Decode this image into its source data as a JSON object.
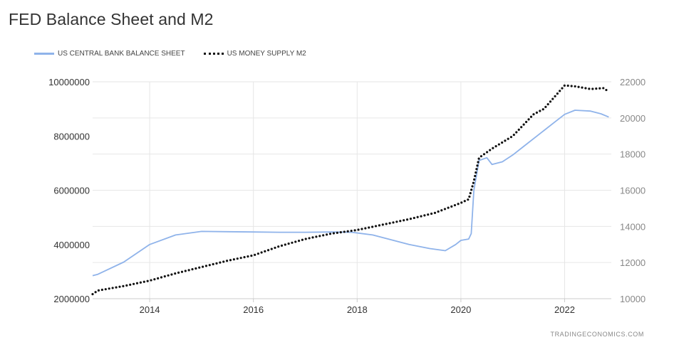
{
  "title": "FED Balance Sheet and M2",
  "source": "TRADINGECONOMICS.COM",
  "chart_data": {
    "type": "line",
    "title": "FED Balance Sheet and M2",
    "legend_position": "top-left",
    "grid": true,
    "x_ticks": [
      "2014",
      "2016",
      "2018",
      "2020",
      "2022"
    ],
    "x_range": [
      2012.9,
      2022.9
    ],
    "y_left": {
      "range": [
        2000000,
        10000000
      ],
      "ticks": [
        "2000000",
        "4000000",
        "6000000",
        "8000000",
        "10000000"
      ]
    },
    "y_right": {
      "range": [
        10000,
        22000
      ],
      "ticks": [
        "10000",
        "12000",
        "14000",
        "16000",
        "18000",
        "20000",
        "22000"
      ]
    },
    "series": [
      {
        "name": "US CENTRAL BANK BALANCE SHEET",
        "axis": "left",
        "color": "#8fb3ea",
        "style": "solid",
        "points": [
          [
            2012.9,
            2850000
          ],
          [
            2013.0,
            2900000
          ],
          [
            2013.5,
            3350000
          ],
          [
            2014.0,
            4000000
          ],
          [
            2014.5,
            4350000
          ],
          [
            2015.0,
            4480000
          ],
          [
            2015.5,
            4470000
          ],
          [
            2016.0,
            4460000
          ],
          [
            2016.5,
            4450000
          ],
          [
            2017.0,
            4450000
          ],
          [
            2017.5,
            4460000
          ],
          [
            2017.9,
            4450000
          ],
          [
            2018.3,
            4350000
          ],
          [
            2018.7,
            4150000
          ],
          [
            2019.0,
            4000000
          ],
          [
            2019.4,
            3850000
          ],
          [
            2019.7,
            3770000
          ],
          [
            2019.9,
            4000000
          ],
          [
            2020.0,
            4150000
          ],
          [
            2020.15,
            4200000
          ],
          [
            2020.2,
            4400000
          ],
          [
            2020.25,
            6000000
          ],
          [
            2020.35,
            7100000
          ],
          [
            2020.5,
            7200000
          ],
          [
            2020.6,
            6950000
          ],
          [
            2020.8,
            7050000
          ],
          [
            2021.0,
            7300000
          ],
          [
            2021.2,
            7600000
          ],
          [
            2021.5,
            8050000
          ],
          [
            2021.8,
            8500000
          ],
          [
            2022.0,
            8800000
          ],
          [
            2022.2,
            8950000
          ],
          [
            2022.5,
            8920000
          ],
          [
            2022.7,
            8820000
          ],
          [
            2022.85,
            8700000
          ]
        ]
      },
      {
        "name": "US MONEY SUPPLY M2",
        "axis": "right",
        "color": "#111111",
        "style": "dotted",
        "points": [
          [
            2012.9,
            10250
          ],
          [
            2013.0,
            10450
          ],
          [
            2013.5,
            10700
          ],
          [
            2014.0,
            11000
          ],
          [
            2014.5,
            11400
          ],
          [
            2015.0,
            11750
          ],
          [
            2015.5,
            12100
          ],
          [
            2016.0,
            12400
          ],
          [
            2016.5,
            12900
          ],
          [
            2017.0,
            13300
          ],
          [
            2017.5,
            13600
          ],
          [
            2018.0,
            13800
          ],
          [
            2018.5,
            14100
          ],
          [
            2019.0,
            14400
          ],
          [
            2019.5,
            14750
          ],
          [
            2020.0,
            15300
          ],
          [
            2020.15,
            15500
          ],
          [
            2020.25,
            16500
          ],
          [
            2020.35,
            17800
          ],
          [
            2020.6,
            18300
          ],
          [
            2021.0,
            19000
          ],
          [
            2021.4,
            20200
          ],
          [
            2021.6,
            20500
          ],
          [
            2022.0,
            21800
          ],
          [
            2022.2,
            21750
          ],
          [
            2022.5,
            21600
          ],
          [
            2022.75,
            21650
          ],
          [
            2022.85,
            21450
          ]
        ]
      }
    ]
  }
}
